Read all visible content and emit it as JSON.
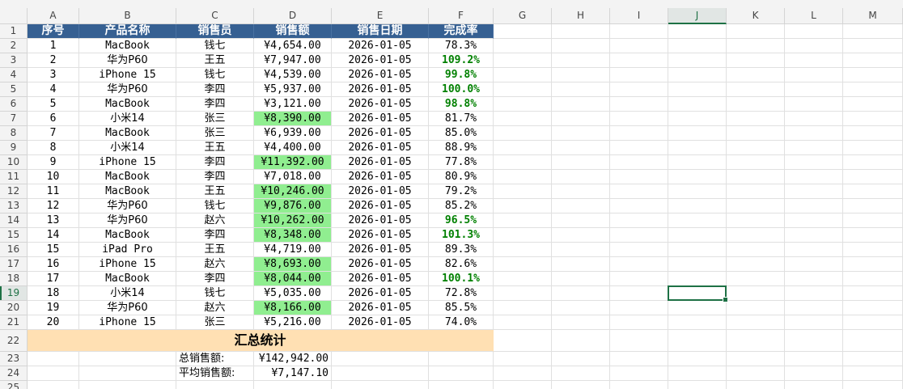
{
  "sheet": {
    "columns": [
      "A",
      "B",
      "C",
      "D",
      "E",
      "F",
      "G",
      "H",
      "I",
      "J",
      "K",
      "L",
      "M"
    ],
    "rows": [
      "1",
      "2",
      "3",
      "4",
      "5",
      "6",
      "7",
      "8",
      "9",
      "10",
      "11",
      "12",
      "13",
      "14",
      "15",
      "16",
      "17",
      "18",
      "19",
      "20",
      "21",
      "22",
      "23",
      "24",
      "25"
    ],
    "selected_column": "J",
    "selected_row": "19",
    "selected_cell": "J19"
  },
  "table": {
    "headers": [
      "序号",
      "产品名称",
      "销售员",
      "销售额",
      "销售日期",
      "完成率"
    ],
    "rows": [
      {
        "no": "1",
        "product": "MacBook",
        "seller": "钱七",
        "amount": "¥4,654.00",
        "date": "2026-01-05",
        "rate": "78.3%",
        "high": false,
        "good": false
      },
      {
        "no": "2",
        "product": "华为P60",
        "seller": "王五",
        "amount": "¥7,947.00",
        "date": "2026-01-05",
        "rate": "109.2%",
        "high": false,
        "good": true
      },
      {
        "no": "3",
        "product": "iPhone 15",
        "seller": "钱七",
        "amount": "¥4,539.00",
        "date": "2026-01-05",
        "rate": "99.8%",
        "high": false,
        "good": true
      },
      {
        "no": "4",
        "product": "华为P60",
        "seller": "李四",
        "amount": "¥5,937.00",
        "date": "2026-01-05",
        "rate": "100.0%",
        "high": false,
        "good": true
      },
      {
        "no": "5",
        "product": "MacBook",
        "seller": "李四",
        "amount": "¥3,121.00",
        "date": "2026-01-05",
        "rate": "98.8%",
        "high": false,
        "good": true
      },
      {
        "no": "6",
        "product": "小米14",
        "seller": "张三",
        "amount": "¥8,390.00",
        "date": "2026-01-05",
        "rate": "81.7%",
        "high": true,
        "good": false
      },
      {
        "no": "7",
        "product": "MacBook",
        "seller": "张三",
        "amount": "¥6,939.00",
        "date": "2026-01-05",
        "rate": "85.0%",
        "high": false,
        "good": false
      },
      {
        "no": "8",
        "product": "小米14",
        "seller": "王五",
        "amount": "¥4,400.00",
        "date": "2026-01-05",
        "rate": "88.9%",
        "high": false,
        "good": false
      },
      {
        "no": "9",
        "product": "iPhone 15",
        "seller": "李四",
        "amount": "¥11,392.00",
        "date": "2026-01-05",
        "rate": "77.8%",
        "high": true,
        "good": false
      },
      {
        "no": "10",
        "product": "MacBook",
        "seller": "李四",
        "amount": "¥7,018.00",
        "date": "2026-01-05",
        "rate": "80.9%",
        "high": false,
        "good": false
      },
      {
        "no": "11",
        "product": "MacBook",
        "seller": "王五",
        "amount": "¥10,246.00",
        "date": "2026-01-05",
        "rate": "79.2%",
        "high": true,
        "good": false
      },
      {
        "no": "12",
        "product": "华为P60",
        "seller": "钱七",
        "amount": "¥9,876.00",
        "date": "2026-01-05",
        "rate": "85.2%",
        "high": true,
        "good": false
      },
      {
        "no": "13",
        "product": "华为P60",
        "seller": "赵六",
        "amount": "¥10,262.00",
        "date": "2026-01-05",
        "rate": "96.5%",
        "high": true,
        "good": true
      },
      {
        "no": "14",
        "product": "MacBook",
        "seller": "李四",
        "amount": "¥8,348.00",
        "date": "2026-01-05",
        "rate": "101.3%",
        "high": true,
        "good": true
      },
      {
        "no": "15",
        "product": "iPad Pro",
        "seller": "王五",
        "amount": "¥4,719.00",
        "date": "2026-01-05",
        "rate": "89.3%",
        "high": false,
        "good": false
      },
      {
        "no": "16",
        "product": "iPhone 15",
        "seller": "赵六",
        "amount": "¥8,693.00",
        "date": "2026-01-05",
        "rate": "82.6%",
        "high": true,
        "good": false
      },
      {
        "no": "17",
        "product": "MacBook",
        "seller": "李四",
        "amount": "¥8,044.00",
        "date": "2026-01-05",
        "rate": "100.1%",
        "high": true,
        "good": true
      },
      {
        "no": "18",
        "product": "小米14",
        "seller": "钱七",
        "amount": "¥5,035.00",
        "date": "2026-01-05",
        "rate": "72.8%",
        "high": false,
        "good": false
      },
      {
        "no": "19",
        "product": "华为P60",
        "seller": "赵六",
        "amount": "¥8,166.00",
        "date": "2026-01-05",
        "rate": "85.5%",
        "high": true,
        "good": false
      },
      {
        "no": "20",
        "product": "iPhone 15",
        "seller": "张三",
        "amount": "¥5,216.00",
        "date": "2026-01-05",
        "rate": "74.0%",
        "high": false,
        "good": false
      }
    ]
  },
  "summary": {
    "title": "汇总统计",
    "total_label": "总销售额:",
    "total_value": "¥142,942.00",
    "avg_label": "平均销售额:",
    "avg_value": "¥7,147.10"
  },
  "colors": {
    "header_bg": "#366092",
    "highlight_bg": "#90ee90",
    "good_text": "#008000",
    "summary_bg": "#ffe0b3",
    "selection": "#1e7145"
  }
}
